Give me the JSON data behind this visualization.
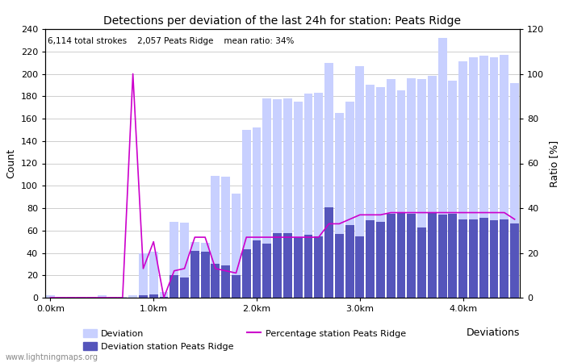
{
  "title": "Detections per deviation of the last 24h for station: Peats Ridge",
  "subtitle": "6,114 total strokes    2,057 Peats Ridge    mean ratio: 34%",
  "ylabel_left": "Count",
  "ylabel_right": "Ratio [%]",
  "xlabel_right": "Deviations",
  "watermark": "www.lightningmaps.org",
  "deviation_color": "#c8d0ff",
  "station_color": "#5555bb",
  "line_color": "#cc00cc",
  "deviation_bars": [
    2,
    1,
    1,
    1,
    1,
    2,
    1,
    1,
    2,
    40,
    41,
    5,
    68,
    67,
    50,
    49,
    109,
    108,
    93,
    150,
    152,
    178,
    177,
    178,
    175,
    182,
    183,
    210,
    165,
    175,
    207,
    190,
    188,
    195,
    185,
    196,
    195,
    198,
    232,
    194,
    211,
    215,
    216,
    215,
    217,
    192
  ],
  "station_bars": [
    0,
    0,
    0,
    0,
    0,
    0,
    0,
    0,
    0,
    2,
    3,
    1,
    20,
    18,
    42,
    41,
    30,
    29,
    20,
    43,
    51,
    48,
    58,
    58,
    54,
    56,
    55,
    81,
    57,
    65,
    55,
    69,
    68,
    75,
    76,
    75,
    63,
    76,
    74,
    75,
    70,
    70,
    71,
    69,
    70,
    66
  ],
  "ratio_line": [
    0,
    0,
    0,
    0,
    0,
    0,
    0,
    0,
    100,
    13,
    25,
    0,
    12,
    13,
    27,
    27,
    13,
    12,
    11,
    27,
    27,
    27,
    27,
    27,
    27,
    27,
    27,
    33,
    33,
    35,
    37,
    37,
    37,
    38,
    38,
    38,
    38,
    38,
    38,
    38,
    38,
    38,
    38,
    38,
    38,
    35
  ],
  "xtick_positions": [
    0,
    10,
    20,
    30,
    40
  ],
  "xtick_labels": [
    "0.0km",
    "1.0km",
    "2.0km",
    "3.0km",
    "4.0km"
  ],
  "ylim_left": [
    0,
    240
  ],
  "ylim_right": [
    0,
    120
  ],
  "yticks_left": [
    0,
    20,
    40,
    60,
    80,
    100,
    120,
    140,
    160,
    180,
    200,
    220,
    240
  ],
  "yticks_right": [
    0,
    20,
    40,
    60,
    80,
    100,
    120
  ]
}
